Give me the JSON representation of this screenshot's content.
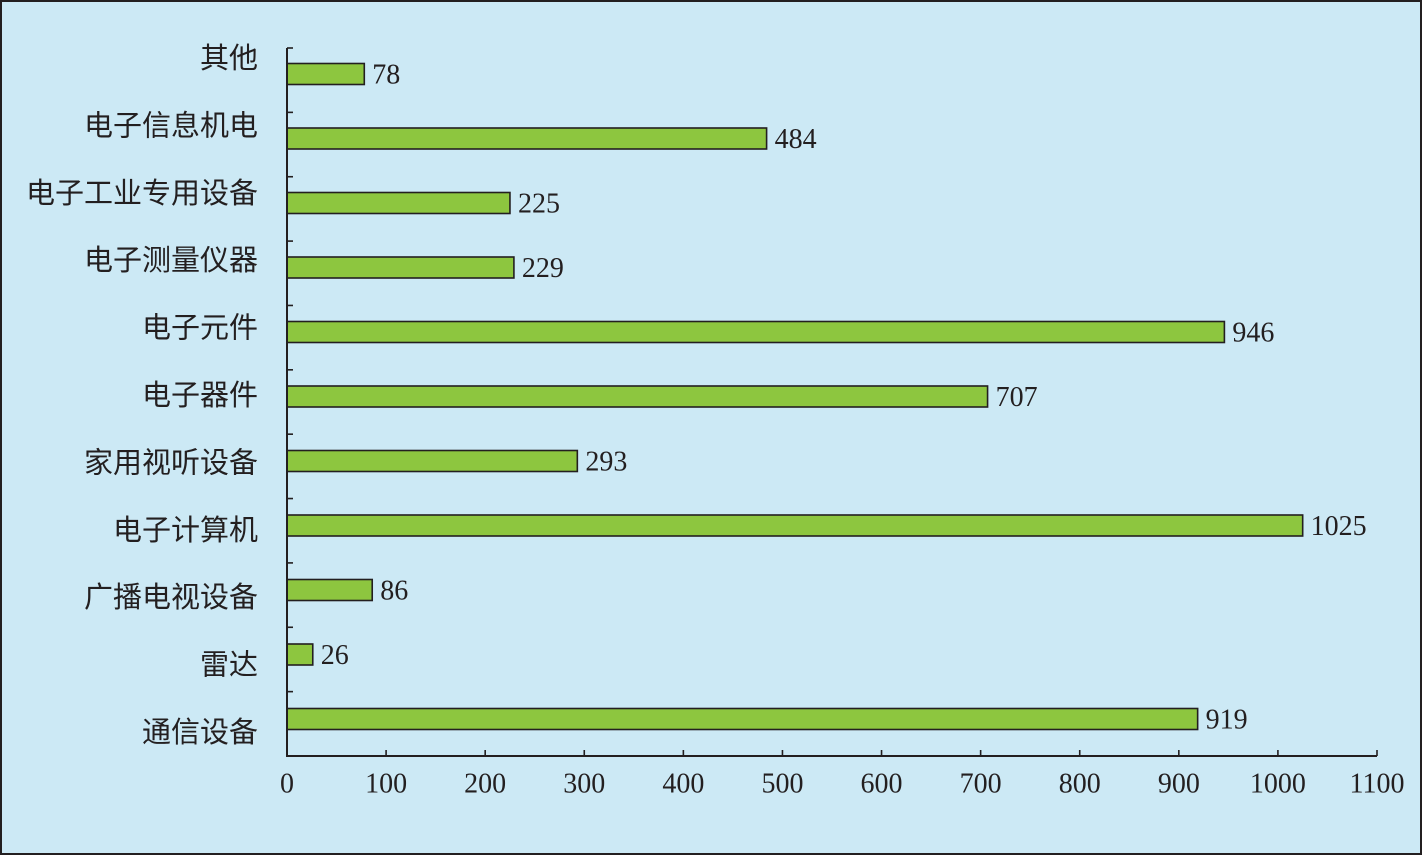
{
  "chart_data": {
    "type": "bar",
    "orientation": "horizontal",
    "categories": [
      "其他",
      "电子信息机电",
      "电子工业专用设备",
      "电子测量仪器",
      "电子元件",
      "电子器件",
      "家用视听设备",
      "电子计算机",
      "广播电视设备",
      "雷达",
      "通信设备"
    ],
    "values": [
      78,
      484,
      225,
      229,
      946,
      707,
      293,
      1025,
      86,
      26,
      919
    ],
    "xlim": [
      0,
      1100
    ],
    "xticks": [
      0,
      100,
      200,
      300,
      400,
      500,
      600,
      700,
      800,
      900,
      1000,
      1100
    ],
    "grid": false,
    "colors": {
      "background": "#cce9f5",
      "bar": "#8dc63f",
      "outline": "#231f20",
      "text": "#231f20"
    }
  }
}
